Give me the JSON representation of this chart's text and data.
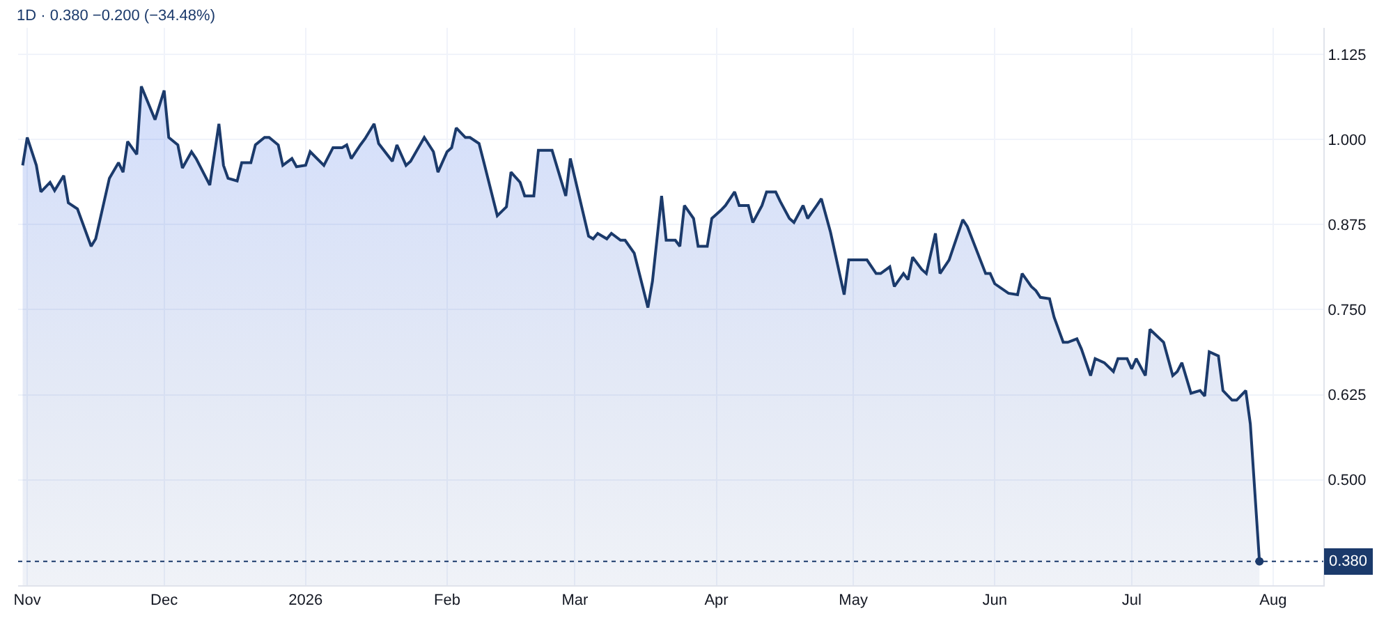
{
  "chart_data": {
    "type": "area",
    "title": "1D · 0.380 −0.200 (−34.48%)",
    "x": [
      "2025-10-31",
      "2025-11-01",
      "2025-11-03",
      "2025-11-04",
      "2025-11-06",
      "2025-11-07",
      "2025-11-09",
      "2025-11-10",
      "2025-11-12",
      "2025-11-15",
      "2025-11-16",
      "2025-11-19",
      "2025-11-21",
      "2025-11-22",
      "2025-11-23",
      "2025-11-25",
      "2025-11-26",
      "2025-11-29",
      "2025-12-01",
      "2025-12-02",
      "2025-12-04",
      "2025-12-05",
      "2025-12-07",
      "2025-12-08",
      "2025-12-11",
      "2025-12-13",
      "2025-12-14",
      "2025-12-15",
      "2025-12-17",
      "2025-12-18",
      "2025-12-20",
      "2025-12-21",
      "2025-12-23",
      "2025-12-24",
      "2025-12-26",
      "2025-12-27",
      "2025-12-29",
      "2025-12-30",
      "2026-01-01",
      "2026-01-02",
      "2026-01-05",
      "2026-01-07",
      "2026-01-09",
      "2026-01-10",
      "2026-01-11",
      "2026-01-13",
      "2026-01-14",
      "2026-01-16",
      "2026-01-17",
      "2026-01-20",
      "2026-01-21",
      "2026-01-23",
      "2026-01-24",
      "2026-01-27",
      "2026-01-29",
      "2026-01-30",
      "2026-02-01",
      "2026-02-02",
      "2026-02-03",
      "2026-02-05",
      "2026-02-06",
      "2026-02-08",
      "2026-02-09",
      "2026-02-12",
      "2026-02-14",
      "2026-02-15",
      "2026-02-17",
      "2026-02-18",
      "2026-02-20",
      "2026-02-21",
      "2026-02-24",
      "2026-02-27",
      "2026-02-28",
      "2026-03-04",
      "2026-03-05",
      "2026-03-06",
      "2026-03-08",
      "2026-03-09",
      "2026-03-11",
      "2026-03-12",
      "2026-03-14",
      "2026-03-17",
      "2026-03-18",
      "2026-03-20",
      "2026-03-21",
      "2026-03-23",
      "2026-03-24",
      "2026-03-25",
      "2026-03-27",
      "2026-03-28",
      "2026-03-30",
      "2026-03-31",
      "2026-04-02",
      "2026-04-03",
      "2026-04-05",
      "2026-04-06",
      "2026-04-08",
      "2026-04-09",
      "2026-04-11",
      "2026-04-12",
      "2026-04-14",
      "2026-04-15",
      "2026-04-17",
      "2026-04-18",
      "2026-04-20",
      "2026-04-21",
      "2026-04-23",
      "2026-04-24",
      "2026-04-26",
      "2026-04-29",
      "2026-04-30",
      "2026-05-04",
      "2026-05-06",
      "2026-05-07",
      "2026-05-09",
      "2026-05-10",
      "2026-05-12",
      "2026-05-13",
      "2026-05-14",
      "2026-05-16",
      "2026-05-17",
      "2026-05-19",
      "2026-05-20",
      "2026-05-22",
      "2026-05-25",
      "2026-05-26",
      "2026-05-30",
      "2026-05-31",
      "2026-06-01",
      "2026-06-04",
      "2026-06-06",
      "2026-06-07",
      "2026-06-09",
      "2026-06-10",
      "2026-06-11",
      "2026-06-13",
      "2026-06-14",
      "2026-06-16",
      "2026-06-17",
      "2026-06-19",
      "2026-06-20",
      "2026-06-22",
      "2026-06-23",
      "2026-06-25",
      "2026-06-27",
      "2026-06-28",
      "2026-06-30",
      "2026-07-01",
      "2026-07-02",
      "2026-07-04",
      "2026-07-05",
      "2026-07-08",
      "2026-07-10",
      "2026-07-11",
      "2026-07-12",
      "2026-07-14",
      "2026-07-16",
      "2026-07-17",
      "2026-07-18",
      "2026-07-20",
      "2026-07-21",
      "2026-07-23",
      "2026-07-24",
      "2026-07-26",
      "2026-07-27",
      "2026-07-29"
    ],
    "series": [
      {
        "color": "#1b3a6b",
        "values": [
          0.962,
          1.003,
          0.962,
          0.923,
          0.937,
          0.925,
          0.947,
          0.907,
          0.898,
          0.843,
          0.854,
          0.943,
          0.966,
          0.952,
          0.997,
          0.978,
          1.078,
          1.029,
          1.072,
          1.003,
          0.992,
          0.958,
          0.982,
          0.972,
          0.933,
          1.023,
          0.962,
          0.943,
          0.939,
          0.966,
          0.966,
          0.992,
          1.003,
          1.003,
          0.992,
          0.962,
          0.972,
          0.96,
          0.962,
          0.982,
          0.962,
          0.988,
          0.988,
          0.992,
          0.972,
          0.992,
          1.001,
          1.023,
          0.994,
          0.968,
          0.992,
          0.962,
          0.968,
          1.003,
          0.982,
          0.952,
          0.982,
          0.988,
          1.017,
          1.003,
          1.003,
          0.994,
          0.968,
          0.888,
          0.901,
          0.952,
          0.937,
          0.917,
          0.917,
          0.984,
          0.984,
          0.917,
          0.972,
          0.858,
          0.854,
          0.862,
          0.854,
          0.862,
          0.852,
          0.852,
          0.833,
          0.753,
          0.792,
          0.917,
          0.852,
          0.852,
          0.843,
          0.903,
          0.884,
          0.843,
          0.843,
          0.884,
          0.896,
          0.903,
          0.923,
          0.903,
          0.903,
          0.878,
          0.903,
          0.923,
          0.923,
          0.909,
          0.884,
          0.878,
          0.903,
          0.884,
          0.903,
          0.913,
          0.864,
          0.772,
          0.823,
          0.823,
          0.803,
          0.803,
          0.813,
          0.784,
          0.803,
          0.794,
          0.827,
          0.809,
          0.803,
          0.862,
          0.803,
          0.823,
          0.882,
          0.872,
          0.803,
          0.803,
          0.788,
          0.774,
          0.772,
          0.803,
          0.784,
          0.778,
          0.768,
          0.766,
          0.739,
          0.702,
          0.702,
          0.707,
          0.692,
          0.653,
          0.678,
          0.672,
          0.659,
          0.678,
          0.678,
          0.663,
          0.678,
          0.653,
          0.721,
          0.702,
          0.653,
          0.659,
          0.672,
          0.627,
          0.631,
          0.623,
          0.688,
          0.682,
          0.631,
          0.617,
          0.617,
          0.631,
          0.582,
          0.38
        ]
      }
    ],
    "xlim": [
      "2025-10-30",
      "2026-08-12"
    ],
    "xticks": [
      {
        "value": "2025-11-01",
        "label": "Nov"
      },
      {
        "value": "2025-12-01",
        "label": "Dec"
      },
      {
        "value": "2026-01-01",
        "label": "2026"
      },
      {
        "value": "2026-02-01",
        "label": "Feb"
      },
      {
        "value": "2026-03-01",
        "label": "Mar"
      },
      {
        "value": "2026-04-01",
        "label": "Apr"
      },
      {
        "value": "2026-05-01",
        "label": "May"
      },
      {
        "value": "2026-06-01",
        "label": "Jun"
      },
      {
        "value": "2026-07-01",
        "label": "Jul"
      },
      {
        "value": "2026-08-01",
        "label": "Aug"
      }
    ],
    "ylim": [
      0.345,
      1.164
    ],
    "yticks": [
      {
        "value": 0.5,
        "label": "0.500"
      },
      {
        "value": 0.625,
        "label": "0.625"
      },
      {
        "value": 0.75,
        "label": "0.750"
      },
      {
        "value": 0.875,
        "label": "0.875"
      },
      {
        "value": 1.0,
        "label": "1.000"
      },
      {
        "value": 1.125,
        "label": "1.125"
      }
    ],
    "ref_lines": [
      {
        "axis": "y",
        "value": 0.38,
        "label": "0.380",
        "color": "#1b3a6b",
        "line_style": "dotted"
      }
    ],
    "grid": true
  }
}
